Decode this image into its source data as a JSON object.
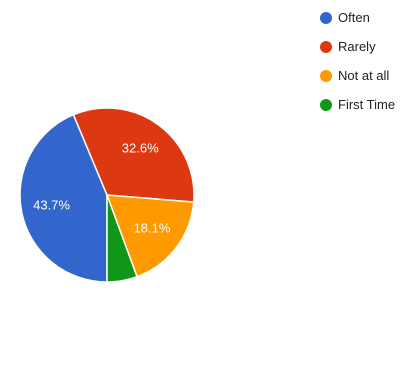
{
  "chart_data": {
    "type": "pie",
    "title": "",
    "categories": [
      "Often",
      "Rarely",
      "Not at all",
      "First Time"
    ],
    "values": [
      43.7,
      32.6,
      18.1,
      5.6
    ],
    "data_labels": [
      "43.7%",
      "32.6%",
      "18.1%",
      ""
    ],
    "colors": [
      "#3366cc",
      "#dc3912",
      "#ff9900",
      "#109618"
    ],
    "start_angle_deg": 90,
    "direction": "clockwise",
    "legend": {
      "placement": "right",
      "entries": [
        {
          "label": "Often",
          "color": "#3366cc"
        },
        {
          "label": "Rarely",
          "color": "#dc3912"
        },
        {
          "label": "Not at all",
          "color": "#ff9900"
        },
        {
          "label": "First Time",
          "color": "#109618"
        }
      ]
    }
  }
}
